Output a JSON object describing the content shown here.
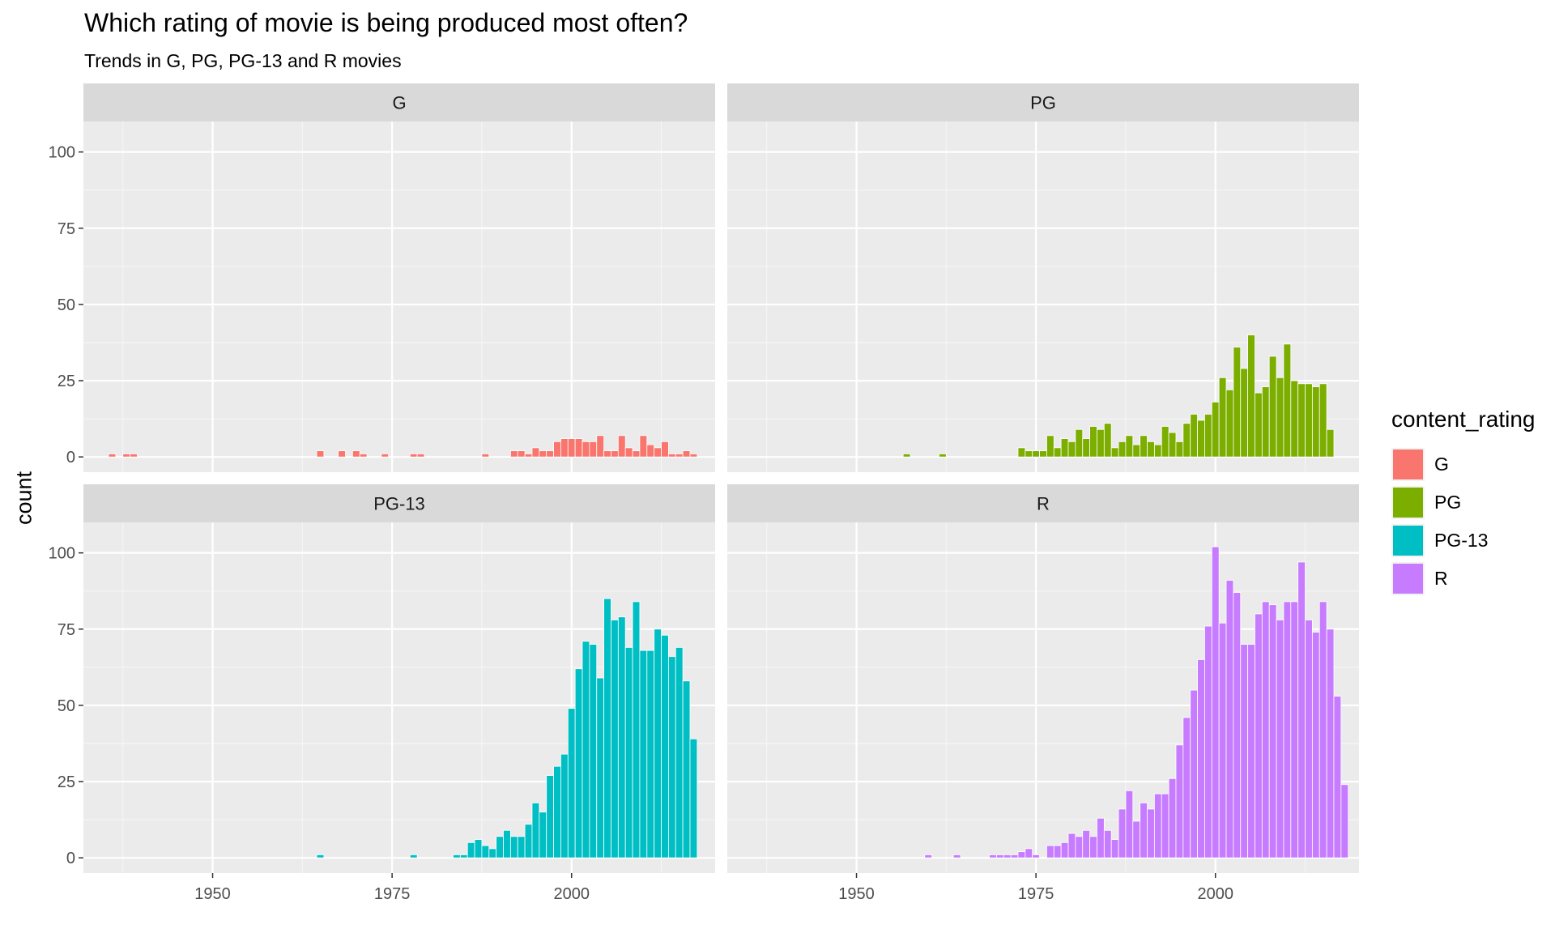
{
  "chart_data": {
    "type": "bar",
    "title": "Which rating of movie is being produced most often?",
    "subtitle": "Trends in G, PG, PG-13 and R movies",
    "ylabel": "count",
    "xlabel": "",
    "xlim": [
      1932,
      2020
    ],
    "ylim": [
      -5,
      110
    ],
    "x_ticks": [
      1950,
      1975,
      2000
    ],
    "y_ticks": [
      0,
      25,
      50,
      75,
      100
    ],
    "grid": true,
    "legend": {
      "title": "content_rating",
      "placement": "right",
      "items": [
        {
          "label": "G",
          "color": "#F8766D"
        },
        {
          "label": "PG",
          "color": "#7CAE00"
        },
        {
          "label": "PG-13",
          "color": "#00BFC4"
        },
        {
          "label": "R",
          "color": "#C77CFF"
        }
      ]
    },
    "facets": [
      {
        "label": "G",
        "color": "#F8766D",
        "bars": [
          [
            1936,
            1
          ],
          [
            1938,
            1
          ],
          [
            1939,
            1
          ],
          [
            1965,
            2
          ],
          [
            1968,
            2
          ],
          [
            1970,
            2
          ],
          [
            1971,
            1
          ],
          [
            1974,
            1
          ],
          [
            1978,
            1
          ],
          [
            1979,
            1
          ],
          [
            1988,
            1
          ],
          [
            1992,
            2
          ],
          [
            1993,
            2
          ],
          [
            1994,
            1
          ],
          [
            1995,
            3
          ],
          [
            1996,
            2
          ],
          [
            1997,
            2
          ],
          [
            1998,
            5
          ],
          [
            1999,
            6
          ],
          [
            2000,
            6
          ],
          [
            2001,
            6
          ],
          [
            2002,
            5
          ],
          [
            2003,
            5
          ],
          [
            2004,
            7
          ],
          [
            2005,
            2
          ],
          [
            2006,
            2
          ],
          [
            2007,
            7
          ],
          [
            2008,
            3
          ],
          [
            2009,
            2
          ],
          [
            2010,
            7
          ],
          [
            2011,
            4
          ],
          [
            2012,
            3
          ],
          [
            2013,
            5
          ],
          [
            2014,
            1
          ],
          [
            2015,
            1
          ],
          [
            2016,
            2
          ],
          [
            2017,
            1
          ]
        ]
      },
      {
        "label": "PG",
        "color": "#7CAE00",
        "bars": [
          [
            1957,
            1
          ],
          [
            1962,
            1
          ],
          [
            1973,
            3
          ],
          [
            1974,
            2
          ],
          [
            1975,
            2
          ],
          [
            1976,
            2
          ],
          [
            1977,
            7
          ],
          [
            1978,
            3
          ],
          [
            1979,
            6
          ],
          [
            1980,
            5
          ],
          [
            1981,
            9
          ],
          [
            1982,
            6
          ],
          [
            1983,
            10
          ],
          [
            1984,
            9
          ],
          [
            1985,
            11
          ],
          [
            1986,
            3
          ],
          [
            1987,
            5
          ],
          [
            1988,
            7
          ],
          [
            1989,
            4
          ],
          [
            1990,
            7
          ],
          [
            1991,
            5
          ],
          [
            1992,
            4
          ],
          [
            1993,
            10
          ],
          [
            1994,
            8
          ],
          [
            1995,
            5
          ],
          [
            1996,
            11
          ],
          [
            1997,
            14
          ],
          [
            1998,
            12
          ],
          [
            1999,
            14
          ],
          [
            2000,
            18
          ],
          [
            2001,
            26
          ],
          [
            2002,
            22
          ],
          [
            2003,
            36
          ],
          [
            2004,
            29
          ],
          [
            2005,
            40
          ],
          [
            2006,
            21
          ],
          [
            2007,
            23
          ],
          [
            2008,
            33
          ],
          [
            2009,
            26
          ],
          [
            2010,
            37
          ],
          [
            2011,
            25
          ],
          [
            2012,
            24
          ],
          [
            2013,
            24
          ],
          [
            2014,
            23
          ],
          [
            2015,
            24
          ],
          [
            2016,
            9
          ]
        ]
      },
      {
        "label": "PG-13",
        "color": "#00BFC4",
        "bars": [
          [
            1965,
            1
          ],
          [
            1978,
            1
          ],
          [
            1984,
            1
          ],
          [
            1985,
            1
          ],
          [
            1986,
            5
          ],
          [
            1987,
            6
          ],
          [
            1988,
            4
          ],
          [
            1989,
            3
          ],
          [
            1990,
            7
          ],
          [
            1991,
            9
          ],
          [
            1992,
            7
          ],
          [
            1993,
            7
          ],
          [
            1994,
            11
          ],
          [
            1995,
            18
          ],
          [
            1996,
            15
          ],
          [
            1997,
            27
          ],
          [
            1998,
            30
          ],
          [
            1999,
            34
          ],
          [
            2000,
            49
          ],
          [
            2001,
            62
          ],
          [
            2002,
            71
          ],
          [
            2003,
            70
          ],
          [
            2004,
            59
          ],
          [
            2005,
            85
          ],
          [
            2006,
            78
          ],
          [
            2007,
            79
          ],
          [
            2008,
            69
          ],
          [
            2009,
            84
          ],
          [
            2010,
            68
          ],
          [
            2011,
            68
          ],
          [
            2012,
            75
          ],
          [
            2013,
            73
          ],
          [
            2014,
            66
          ],
          [
            2015,
            69
          ],
          [
            2016,
            58
          ],
          [
            2017,
            39
          ]
        ]
      },
      {
        "label": "R",
        "color": "#C77CFF",
        "bars": [
          [
            1960,
            1
          ],
          [
            1964,
            1
          ],
          [
            1969,
            1
          ],
          [
            1970,
            1
          ],
          [
            1971,
            1
          ],
          [
            1972,
            1
          ],
          [
            1973,
            2
          ],
          [
            1974,
            3
          ],
          [
            1975,
            1
          ],
          [
            1977,
            4
          ],
          [
            1978,
            4
          ],
          [
            1979,
            5
          ],
          [
            1980,
            8
          ],
          [
            1981,
            7
          ],
          [
            1982,
            9
          ],
          [
            1983,
            7
          ],
          [
            1984,
            13
          ],
          [
            1985,
            9
          ],
          [
            1986,
            6
          ],
          [
            1987,
            16
          ],
          [
            1988,
            22
          ],
          [
            1989,
            12
          ],
          [
            1990,
            18
          ],
          [
            1991,
            16
          ],
          [
            1992,
            21
          ],
          [
            1993,
            21
          ],
          [
            1994,
            26
          ],
          [
            1995,
            37
          ],
          [
            1996,
            46
          ],
          [
            1997,
            55
          ],
          [
            1998,
            65
          ],
          [
            1999,
            76
          ],
          [
            2000,
            102
          ],
          [
            2001,
            77
          ],
          [
            2002,
            91
          ],
          [
            2003,
            87
          ],
          [
            2004,
            70
          ],
          [
            2005,
            70
          ],
          [
            2006,
            80
          ],
          [
            2007,
            84
          ],
          [
            2008,
            83
          ],
          [
            2009,
            78
          ],
          [
            2010,
            84
          ],
          [
            2011,
            84
          ],
          [
            2012,
            97
          ],
          [
            2013,
            78
          ],
          [
            2014,
            74
          ],
          [
            2015,
            84
          ],
          [
            2016,
            75
          ],
          [
            2017,
            53
          ],
          [
            2018,
            24
          ]
        ]
      }
    ]
  }
}
